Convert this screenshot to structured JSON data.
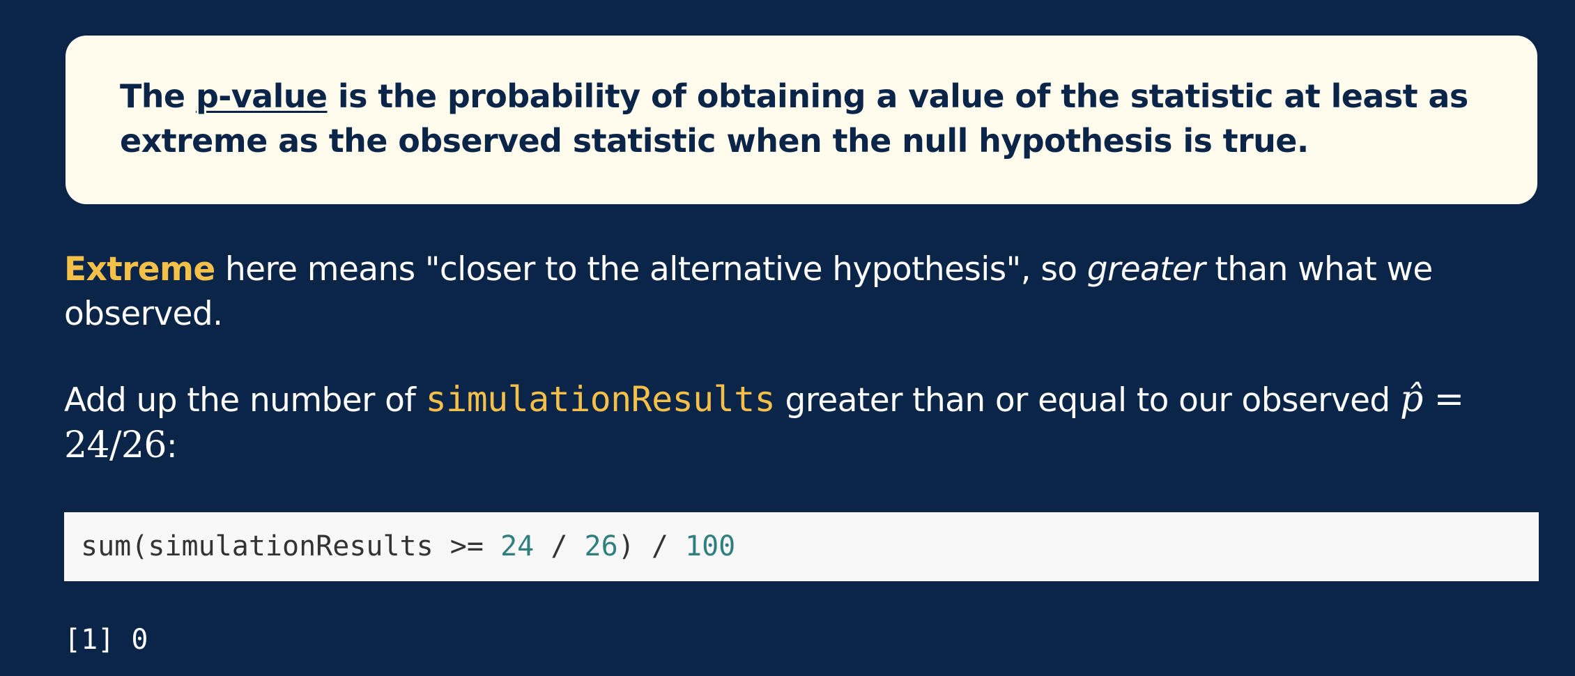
{
  "definition": {
    "before_term": "The ",
    "term": "p-value",
    "after_term": " is the probability of obtaining a value of the statistic at least as extreme as the observed statistic when the null hypothesis is true."
  },
  "extreme_paragraph": {
    "keyword": "Extreme",
    "text_1": " here means \"closer to the alternative hypothesis\", so ",
    "emphasis": "greater",
    "text_2": " than what we observed."
  },
  "add_paragraph": {
    "text_1": "Add up the number of ",
    "code": "simulationResults",
    "text_2": " greater than or equal to our observed ",
    "math_var": "p̂",
    "math_rest": " = 24/26",
    "trailing": ":"
  },
  "code_block": {
    "part_1": "sum(simulationResults >= ",
    "num_1": "24",
    "part_2": " / ",
    "num_2": "26",
    "part_3": ") / ",
    "num_3": "100"
  },
  "output": {
    "text": "[1] 0"
  },
  "colors": {
    "background": "#0b2549",
    "definition_box": "#fffcee",
    "accent": "#f5c04a",
    "code_background": "#f8f8f8",
    "code_number": "#2f7f7f"
  }
}
